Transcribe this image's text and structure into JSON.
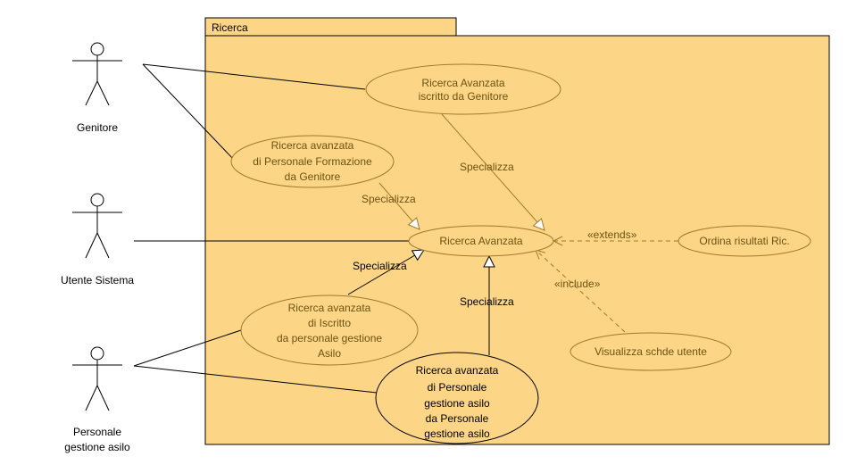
{
  "colors": {
    "package_fill": "#fdd586",
    "package_stroke": "#000000",
    "usecase_stroke": "#a07a2a",
    "usecase_text": "#6b5312",
    "line": "#000000",
    "dashed_line": "#a07a2a"
  },
  "package": {
    "title": "Ricerca"
  },
  "actors": [
    {
      "id": "genitore",
      "lines": [
        "Genitore"
      ]
    },
    {
      "id": "utente",
      "lines": [
        "Utente Sistema"
      ]
    },
    {
      "id": "personale",
      "lines": [
        "Personale",
        "gestione asilo"
      ]
    }
  ],
  "usecases": [
    {
      "id": "uc_iscritto_genitore",
      "lines": [
        "Ricerca Avanzata",
        "iscritto da Genitore"
      ]
    },
    {
      "id": "uc_formazione",
      "lines": [
        "Ricerca avanzata",
        "di Personale Formazione",
        "da Genitore"
      ]
    },
    {
      "id": "uc_main",
      "lines": [
        "Ricerca Avanzata"
      ]
    },
    {
      "id": "uc_ordina",
      "lines": [
        "Ordina risultati Ric."
      ]
    },
    {
      "id": "uc_iscritto_personale",
      "lines": [
        "Ricerca avanzata",
        "di Iscritto",
        "da personale gestione",
        "Asilo"
      ]
    },
    {
      "id": "uc_visualizza",
      "lines": [
        "Visualizza schde utente"
      ]
    },
    {
      "id": "uc_personale_personale",
      "lines": [
        "Ricerca avanzata",
        "di Personale",
        "gestione asilo",
        "da Personale",
        "gestione asilo"
      ]
    }
  ],
  "relations": {
    "specializza": "Specializza",
    "extends": "«extends»",
    "include": "«include»"
  }
}
